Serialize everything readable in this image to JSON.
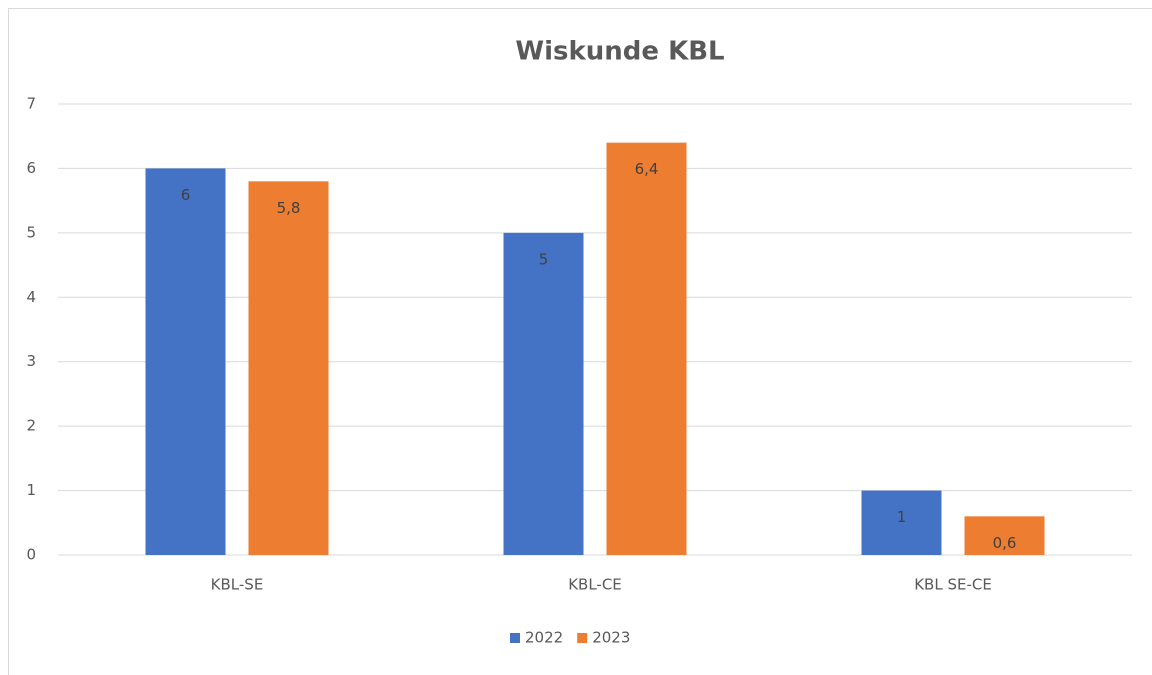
{
  "chart_data": {
    "type": "bar",
    "title": "Wiskunde KBL",
    "categories": [
      "KBL-SE",
      "KBL-CE",
      "KBL SE-CE"
    ],
    "series": [
      {
        "name": "2022",
        "color": "#4472c4",
        "values": [
          6,
          5,
          1
        ],
        "value_labels": [
          "6",
          "5",
          "1"
        ]
      },
      {
        "name": "2023",
        "color": "#ed7d31",
        "values": [
          5.8,
          6.4,
          0.6
        ],
        "value_labels": [
          "5,8",
          "6,4",
          "0,6"
        ]
      }
    ],
    "ylim": [
      0,
      7
    ],
    "yticks": [
      0,
      1,
      2,
      3,
      4,
      5,
      6,
      7
    ],
    "grid": true,
    "legend": "bottom"
  }
}
